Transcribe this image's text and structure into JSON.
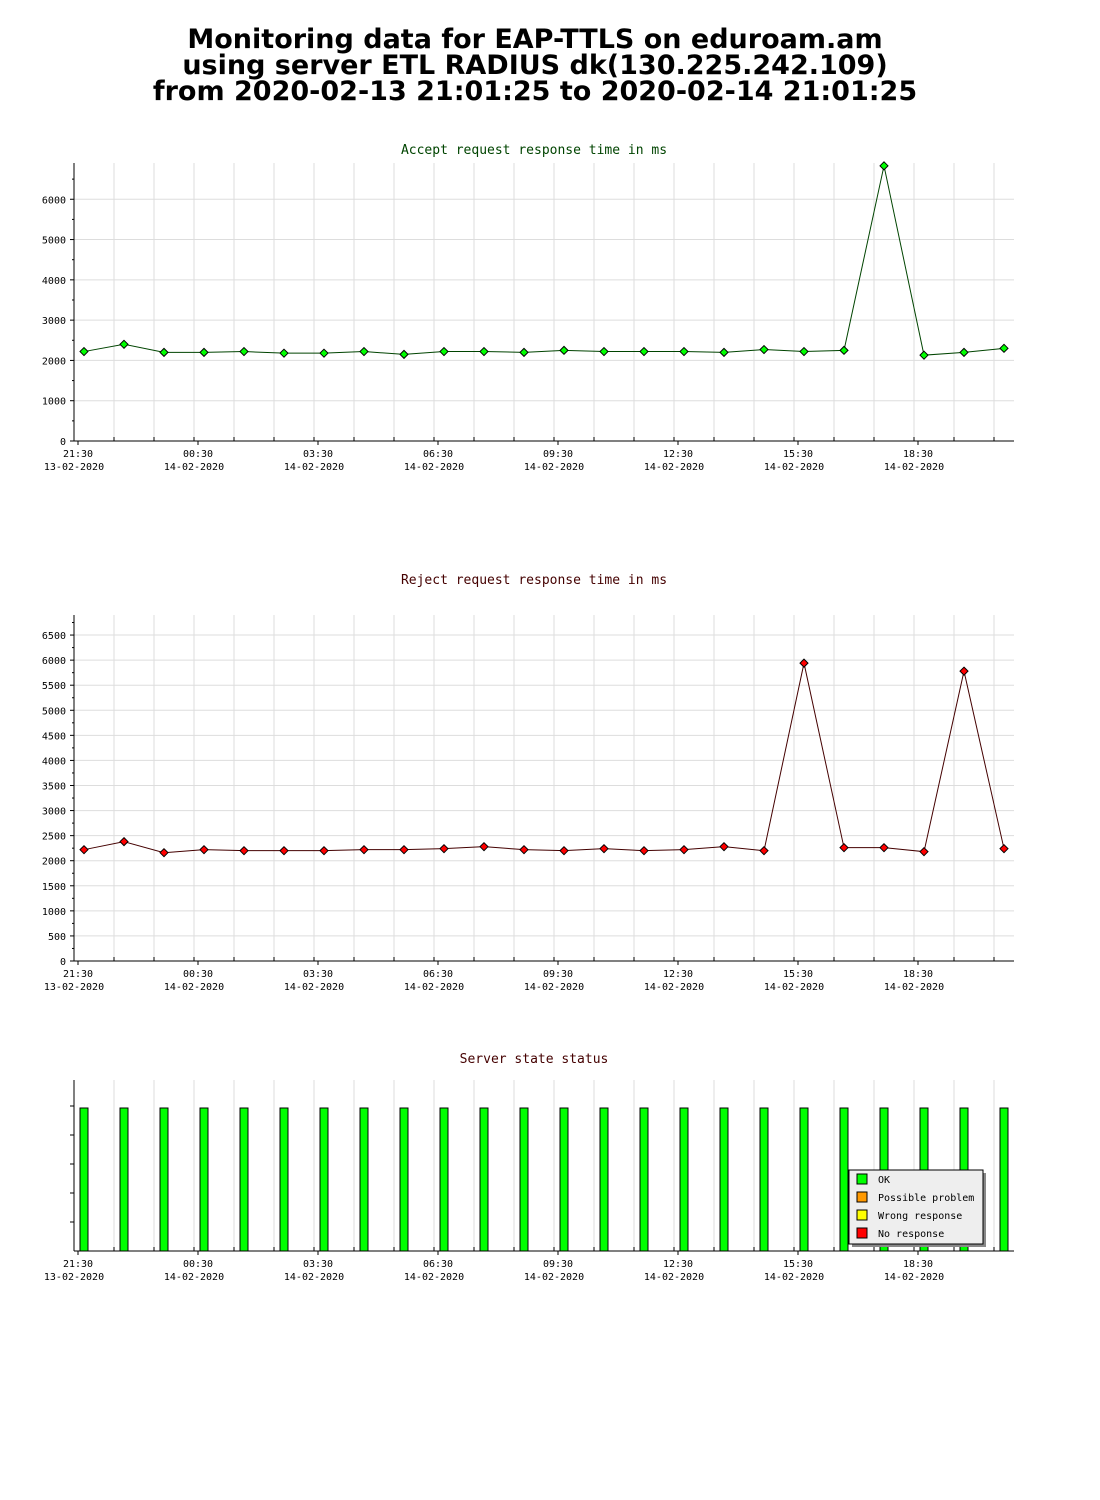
{
  "header": {
    "line1": "Monitoring data for EAP-TTLS on eduroam.am",
    "line2": "using server ETL RADIUS dk(130.225.242.109)",
    "line3": "from 2020-02-13 21:01:25 to 2020-02-14 21:01:25"
  },
  "chart_data": [
    {
      "type": "line",
      "title": "Accept request response time in ms",
      "title_color": "#004400",
      "x_tick_labels": [
        {
          "time": "21:30",
          "date": "13-02-2020"
        },
        {
          "time": "00:30",
          "date": "14-02-2020"
        },
        {
          "time": "03:30",
          "date": "14-02-2020"
        },
        {
          "time": "06:30",
          "date": "14-02-2020"
        },
        {
          "time": "09:30",
          "date": "14-02-2020"
        },
        {
          "time": "12:30",
          "date": "14-02-2020"
        },
        {
          "time": "15:30",
          "date": "14-02-2020"
        },
        {
          "time": "18:30",
          "date": "14-02-2020"
        }
      ],
      "ylim": [
        0,
        6900
      ],
      "y_ticks": [
        0,
        1000,
        2000,
        3000,
        4000,
        5000,
        6000
      ],
      "grid": true,
      "series": [
        {
          "color": "#00ff00",
          "line_color": "#004400",
          "x": [
            "21:31",
            "22:31",
            "23:31",
            "00:31",
            "01:31",
            "02:31",
            "03:31",
            "04:31",
            "05:31",
            "06:31",
            "07:31",
            "08:31",
            "09:31",
            "10:31",
            "11:31",
            "12:31",
            "13:31",
            "14:31",
            "15:31",
            "16:31",
            "17:31",
            "18:31",
            "19:31",
            "20:31"
          ],
          "values": [
            2220,
            2400,
            2200,
            2200,
            2220,
            2180,
            2180,
            2220,
            2150,
            2220,
            2220,
            2200,
            2250,
            2220,
            2220,
            2220,
            2200,
            2270,
            2220,
            2250,
            6830,
            2130,
            2200,
            2300
          ]
        }
      ]
    },
    {
      "type": "line",
      "title": "Reject request response time in ms",
      "title_color": "#440000",
      "x_tick_labels": [
        {
          "time": "21:30",
          "date": "13-02-2020"
        },
        {
          "time": "00:30",
          "date": "14-02-2020"
        },
        {
          "time": "03:30",
          "date": "14-02-2020"
        },
        {
          "time": "06:30",
          "date": "14-02-2020"
        },
        {
          "time": "09:30",
          "date": "14-02-2020"
        },
        {
          "time": "12:30",
          "date": "14-02-2020"
        },
        {
          "time": "15:30",
          "date": "14-02-2020"
        },
        {
          "time": "18:30",
          "date": "14-02-2020"
        }
      ],
      "ylim": [
        0,
        6900
      ],
      "y_ticks": [
        0,
        500,
        1000,
        1500,
        2000,
        2500,
        3000,
        3500,
        4000,
        4500,
        5000,
        5500,
        6000,
        6500
      ],
      "grid": true,
      "series": [
        {
          "color": "#ff0000",
          "line_color": "#440000",
          "x": [
            "21:31",
            "22:31",
            "23:31",
            "00:31",
            "01:31",
            "02:31",
            "03:31",
            "04:31",
            "05:31",
            "06:31",
            "07:31",
            "08:31",
            "09:31",
            "10:31",
            "11:31",
            "12:31",
            "13:31",
            "14:31",
            "15:31",
            "16:31",
            "17:31",
            "18:31",
            "19:31",
            "20:31"
          ],
          "values": [
            2220,
            2380,
            2160,
            2220,
            2200,
            2200,
            2200,
            2220,
            2220,
            2240,
            2280,
            2220,
            2200,
            2240,
            2200,
            2220,
            2280,
            2200,
            5940,
            2260,
            2260,
            2180,
            5780,
            2240
          ]
        }
      ]
    },
    {
      "type": "bar",
      "title": "Server state status",
      "title_color": "#440000",
      "x_tick_labels": [
        {
          "time": "21:30",
          "date": "13-02-2020"
        },
        {
          "time": "00:30",
          "date": "14-02-2020"
        },
        {
          "time": "03:30",
          "date": "14-02-2020"
        },
        {
          "time": "06:30",
          "date": "14-02-2020"
        },
        {
          "time": "09:30",
          "date": "14-02-2020"
        },
        {
          "time": "12:30",
          "date": "14-02-2020"
        },
        {
          "time": "15:30",
          "date": "14-02-2020"
        },
        {
          "time": "18:30",
          "date": "14-02-2020"
        }
      ],
      "bar_count": 24,
      "states": [
        "OK",
        "OK",
        "OK",
        "OK",
        "OK",
        "OK",
        "OK",
        "OK",
        "OK",
        "OK",
        "OK",
        "OK",
        "OK",
        "OK",
        "OK",
        "OK",
        "OK",
        "OK",
        "OK",
        "OK",
        "OK",
        "OK",
        "OK",
        "OK"
      ],
      "legend": [
        {
          "label": "OK",
          "color": "#00ff00"
        },
        {
          "label": "Possible problem",
          "color": "#ff9900"
        },
        {
          "label": "Wrong response",
          "color": "#ffff00"
        },
        {
          "label": "No response",
          "color": "#ff0000"
        }
      ],
      "legend_position": "bottom-right"
    }
  ]
}
